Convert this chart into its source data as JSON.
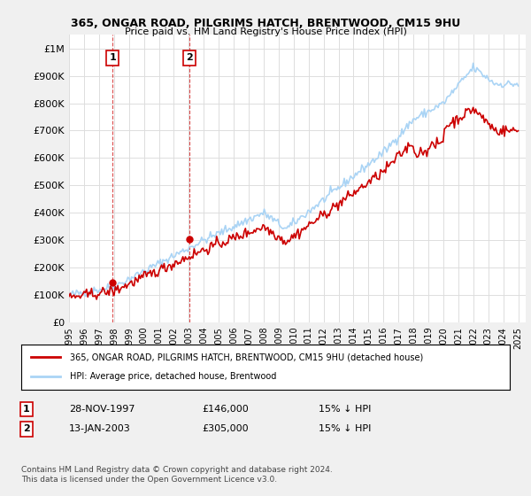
{
  "title1": "365, ONGAR ROAD, PILGRIMS HATCH, BRENTWOOD, CM15 9HU",
  "title2": "Price paid vs. HM Land Registry's House Price Index (HPI)",
  "xlabel": "",
  "ylabel": "",
  "ylim": [
    0,
    1050000
  ],
  "yticks": [
    0,
    100000,
    200000,
    300000,
    400000,
    500000,
    600000,
    700000,
    800000,
    900000,
    1000000
  ],
  "ytick_labels": [
    "£0",
    "£100K",
    "£200K",
    "£300K",
    "£400K",
    "£500K",
    "£600K",
    "£700K",
    "£800K",
    "£900K",
    "£1M"
  ],
  "background_color": "#f0f0f0",
  "plot_bg_color": "#ffffff",
  "grid_color": "#dddddd",
  "hpi_color": "#aad4f5",
  "price_color": "#cc0000",
  "marker1_date": 1997.91,
  "marker1_price": 146000,
  "marker2_date": 2003.04,
  "marker2_price": 305000,
  "legend_label1": "365, ONGAR ROAD, PILGRIMS HATCH, BRENTWOOD, CM15 9HU (detached house)",
  "legend_label2": "HPI: Average price, detached house, Brentwood",
  "table_row1": [
    "1",
    "28-NOV-1997",
    "£146,000",
    "15% ↓ HPI"
  ],
  "table_row2": [
    "2",
    "13-JAN-2003",
    "£305,000",
    "15% ↓ HPI"
  ],
  "footnote": "Contains HM Land Registry data © Crown copyright and database right 2024.\nThis data is licensed under the Open Government Licence v3.0."
}
